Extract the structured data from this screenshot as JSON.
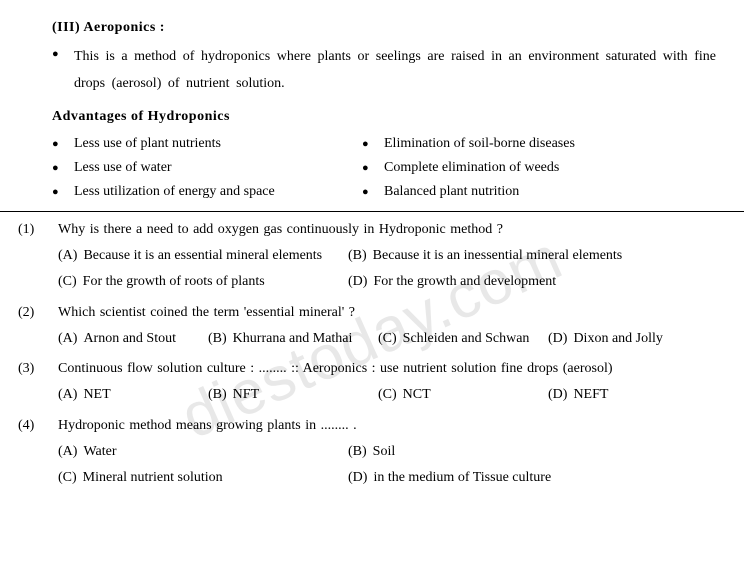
{
  "section3": {
    "heading": "(III)  Aeroponics  :",
    "description": "This  is  a  method  of  hydroponics  where  plants  or  seelings  are  raised  in  an  environment saturated with fine drops (aerosol) of nutrient solution."
  },
  "advantages": {
    "heading": "Advantages  of  Hydroponics",
    "left": [
      "Less use of plant nutrients",
      "Less  use  of  water",
      "Less utilization of energy and space"
    ],
    "right": [
      "Elimination of soil-borne diseases",
      "Complete elimination of weeds",
      "Balanced plant nutrition"
    ]
  },
  "questions": [
    {
      "num": "(1)",
      "text": "Why is there a need to add oxygen gas continuously in Hydroponic method ?",
      "layout": "2col",
      "options": [
        {
          "l": "(A)",
          "t": "Because it is an essential mineral elements"
        },
        {
          "l": "(B)",
          "t": "Because it is an inessential mineral elements"
        },
        {
          "l": "(C)",
          "t": "For the growth of roots of plants"
        },
        {
          "l": "(D)",
          "t": "For the growth and development"
        }
      ]
    },
    {
      "num": "(2)",
      "text": "Which scientist coined the term 'essential mineral' ?",
      "layout": "4col",
      "options": [
        {
          "l": "(A)",
          "t": "Arnon and Stout"
        },
        {
          "l": "(B)",
          "t": "Khurrana and Mathai"
        },
        {
          "l": "(C)",
          "t": "Schleiden and Schwan"
        },
        {
          "l": "(D)",
          "t": "Dixon and Jolly"
        }
      ]
    },
    {
      "num": "(3)",
      "text": "Continuous flow solution culture : ........ :: Aeroponics : use nutrient solution fine drops (aerosol)",
      "layout": "4col",
      "options": [
        {
          "l": "(A)",
          "t": "NET"
        },
        {
          "l": "(B)",
          "t": "NFT"
        },
        {
          "l": "(C)",
          "t": "NCT"
        },
        {
          "l": "(D)",
          "t": "NEFT"
        }
      ]
    },
    {
      "num": "(4)",
      "text": "Hydroponic method means growing plants in ........ .",
      "layout": "2col",
      "options": [
        {
          "l": "(A)",
          "t": "Water"
        },
        {
          "l": "(B)",
          "t": "Soil"
        },
        {
          "l": "(C)",
          "t": "Mineral nutrient solution"
        },
        {
          "l": "(D)",
          "t": "in the medium of Tissue culture"
        }
      ]
    }
  ],
  "watermark": "diestoday.com"
}
